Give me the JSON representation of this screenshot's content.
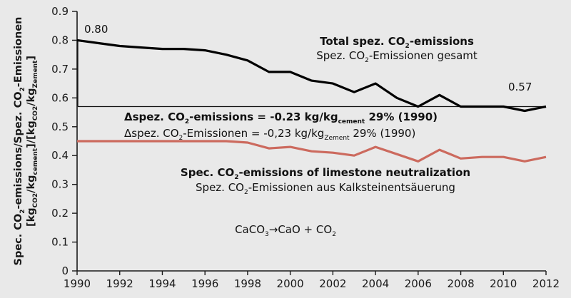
{
  "chart_data": {
    "type": "line",
    "xlim": [
      1990,
      2012
    ],
    "ylim": [
      0,
      0.9
    ],
    "x_ticks": [
      "1990",
      "1992",
      "1994",
      "1996",
      "1998",
      "2000",
      "2002",
      "2004",
      "2006",
      "2008",
      "2010",
      "2012"
    ],
    "y_ticks": [
      "0",
      "0.1",
      "0.2",
      "0.3",
      "0.4",
      "0.5",
      "0.6",
      "0.7",
      "0.8",
      "0.9"
    ],
    "ylabel_line1": {
      "a": "Spec. CO",
      "s1": "2",
      "b": "-emissions/Spez. CO",
      "s2": "2",
      "c": "-Emissionen"
    },
    "ylabel_line2": {
      "a": "[kg",
      "s1": "CO2",
      "b": "/kg",
      "s2": "cement",
      "c": "]/[kg",
      "s3": "CO2",
      "d": "/kg",
      "s4": "Zement",
      "e": "]"
    },
    "x": [
      1990,
      1991,
      1992,
      1993,
      1994,
      1995,
      1996,
      1997,
      1998,
      1999,
      2000,
      2001,
      2002,
      2003,
      2004,
      2005,
      2006,
      2007,
      2008,
      2009,
      2010,
      2011,
      2012
    ],
    "series": [
      {
        "color": "#000000",
        "values": [
          0.8,
          0.79,
          0.78,
          0.775,
          0.77,
          0.77,
          0.765,
          0.75,
          0.73,
          0.69,
          0.69,
          0.66,
          0.65,
          0.62,
          0.65,
          0.6,
          0.57,
          0.61,
          0.57,
          0.57,
          0.57,
          0.555,
          0.57
        ]
      },
      {
        "color": "#cc6a5e",
        "values": [
          0.45,
          0.45,
          0.45,
          0.45,
          0.45,
          0.45,
          0.45,
          0.45,
          0.445,
          0.425,
          0.43,
          0.415,
          0.41,
          0.4,
          0.43,
          0.405,
          0.38,
          0.42,
          0.39,
          0.395,
          0.395,
          0.38,
          0.395
        ]
      }
    ],
    "labels": {
      "start_value": "0.80",
      "end_value": "0.57"
    },
    "annotations": {
      "total_en": {
        "a": "Total spez. CO",
        "s": "2",
        "b": "-emissions"
      },
      "total_de": {
        "a": "Spez. CO",
        "s": "2",
        "b": "-Emissionen gesamt"
      },
      "delta_en": {
        "a": "Δspez. CO",
        "s1": "2",
        "b": "-emissions = -0.23 kg/kg",
        "s2": "cement",
        "c": "  29% (1990)"
      },
      "delta_de": {
        "a": "Δspez. CO",
        "s1": "2",
        "b": "-Emissionen = -0,23 kg/kg",
        "s2": "Zement",
        "c": "  29% (1990)"
      },
      "lime_en": {
        "a": "Spec. CO",
        "s": "2",
        "b": "-emissions of limestone neutralization"
      },
      "lime_de": {
        "a": "Spez. CO",
        "s": "2",
        "b": "-Emissionen aus Kalksteinentsäuerung"
      },
      "reaction": {
        "a": "CaCO",
        "s1": "3",
        "b": "→CaO + CO",
        "s2": "2"
      }
    }
  }
}
